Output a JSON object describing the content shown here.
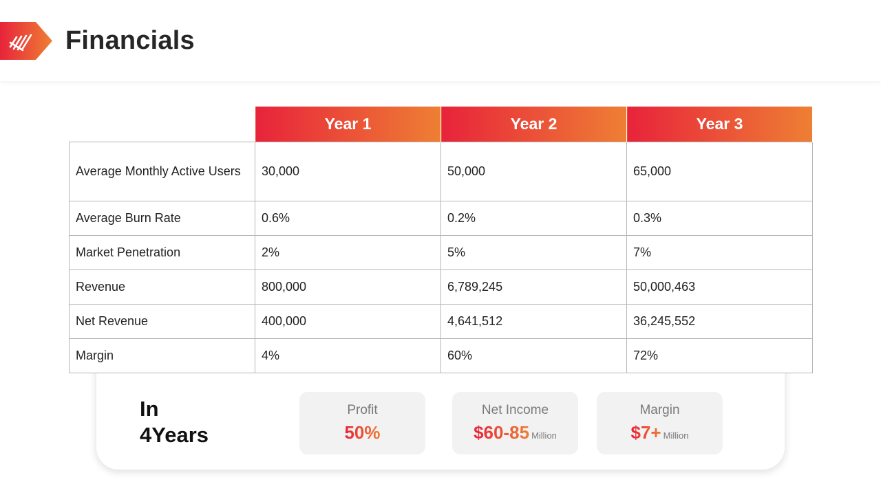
{
  "title": "Financials",
  "table": {
    "columns": [
      "Year 1",
      "Year 2",
      "Year 3"
    ],
    "rows": [
      {
        "label": "Average Monthly Active Users",
        "values": [
          "30,000",
          "50,000",
          "65,000"
        ]
      },
      {
        "label": "Average Burn Rate",
        "values": [
          "0.6%",
          "0.2%",
          "0.3%"
        ]
      },
      {
        "label": "Market Penetration",
        "values": [
          "2%",
          "5%",
          "7%"
        ]
      },
      {
        "label": "Revenue",
        "values": [
          "800,000",
          "6,789,245",
          "50,000,463"
        ]
      },
      {
        "label": "Net Revenue",
        "values": [
          "400,000",
          "4,641,512",
          "36,245,552"
        ]
      },
      {
        "label": "Margin",
        "values": [
          "4%",
          "60%",
          "72%"
        ]
      }
    ]
  },
  "summary": {
    "heading_line1": "In",
    "heading_line2": "4Years",
    "stats": [
      {
        "label": "Profit",
        "value": "50%",
        "unit": ""
      },
      {
        "label": "Net Income",
        "value": "$60-85",
        "unit": "Million"
      },
      {
        "label": "Margin",
        "value": "$7+",
        "unit": "Million"
      }
    ]
  },
  "colors": {
    "accent_start": "#e8233b",
    "accent_end": "#ee7f34"
  },
  "icons": {
    "logo": "striped-logo-tag-icon"
  }
}
